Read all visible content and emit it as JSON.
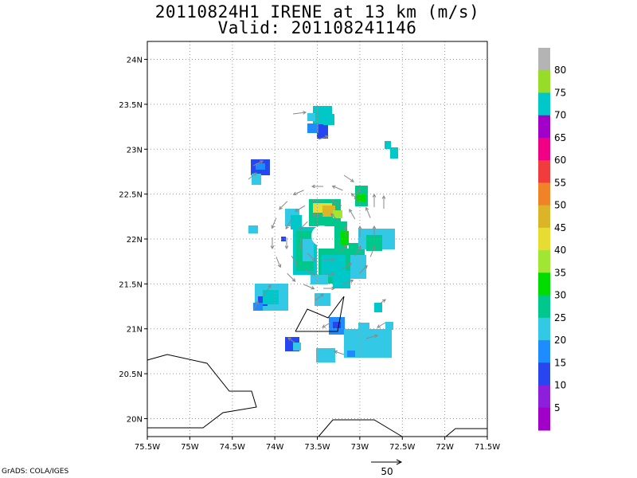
{
  "title": {
    "line1": "20110824H1 IRENE at 13 km (m/s)",
    "line2": "Valid: 201108241146"
  },
  "axes": {
    "x_ticks": [
      "75.5W",
      "75W",
      "74.5W",
      "74W",
      "73.5W",
      "73W",
      "72.5W",
      "72W",
      "71.5W"
    ],
    "y_ticks": [
      "24N",
      "23.5N",
      "23N",
      "22.5N",
      "22N",
      "21.5N",
      "21N",
      "20.5N",
      "20N"
    ],
    "lon_range": [
      -75.5,
      -71.5
    ],
    "lat_range": [
      19.8,
      24.2
    ],
    "grid": true
  },
  "colorbar": {
    "labels": [
      "80",
      "75",
      "70",
      "65",
      "60",
      "55",
      "50",
      "45",
      "40",
      "35",
      "30",
      "25",
      "20",
      "15",
      "10",
      "5"
    ],
    "colors": [
      "#b4b4b4",
      "#96dc28",
      "#00c8c8",
      "#a000c8",
      "#f00082",
      "#f03c3c",
      "#f08228",
      "#dcb428",
      "#e6dc32",
      "#a0e632",
      "#00dc00",
      "#00c88c",
      "#32c8e6",
      "#1e8cff",
      "#2846f0",
      "#8c1edc",
      "#a000c8"
    ]
  },
  "credit": "GrADS: COLA/IGES",
  "reference_vector": {
    "label": "50"
  },
  "icons": {
    "north_arrow": "reference-vector-arrow-icon"
  }
}
